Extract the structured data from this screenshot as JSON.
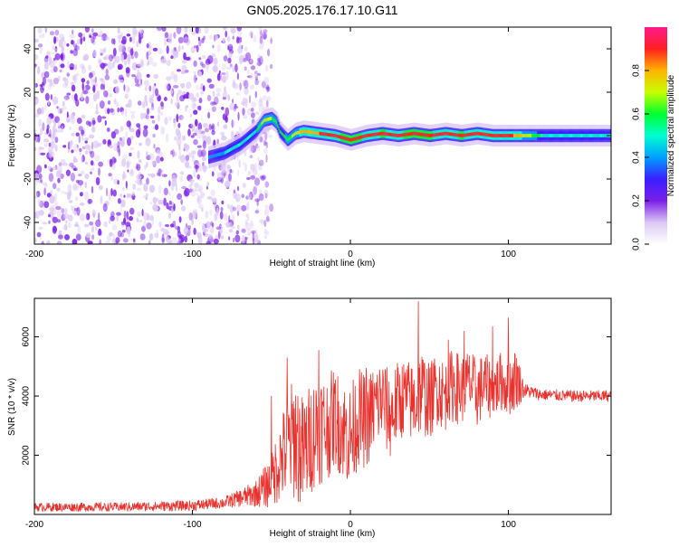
{
  "title": "GN05.2025.176.17.10.G11",
  "colors": {
    "snr_line": "#e8322d",
    "axis": "#000000",
    "background": "#ffffff"
  },
  "chart_data": [
    {
      "type": "heatmap",
      "name": "spectrogram",
      "xlabel": "Height of straight line (km)",
      "ylabel": "Frequency (Hz)",
      "xlim": [
        -200,
        165
      ],
      "ylim": [
        -50,
        50
      ],
      "xticks": [
        -200,
        -100,
        0,
        100
      ],
      "yticks": [
        -40,
        -20,
        0,
        20,
        40
      ],
      "colorbar": {
        "label": "Normalized spectral amplitude",
        "range": [
          0,
          1
        ],
        "ticks": [
          0.0,
          0.2,
          0.4,
          0.6,
          0.8
        ],
        "colormap": [
          "#ffffff",
          "#dcc8f5",
          "#7b1fe8",
          "#3a1fff",
          "#00a0ff",
          "#00ffd0",
          "#00ff30",
          "#c8ff00",
          "#ffb400",
          "#ff2020",
          "#ff1a8c"
        ]
      },
      "ridge": {
        "x": [
          -90,
          -80,
          -70,
          -60,
          -55,
          -50,
          -47,
          -45,
          -40,
          -35,
          -30,
          -20,
          -10,
          0,
          10,
          20,
          30,
          40,
          50,
          60,
          70,
          80,
          90,
          100,
          120,
          140,
          165
        ],
        "freq": [
          -10,
          -8,
          -4,
          2,
          7,
          8,
          6,
          2,
          -2,
          1,
          2,
          1,
          0,
          -2,
          0,
          1,
          0,
          1,
          0,
          1,
          0,
          1,
          0,
          0,
          0,
          0,
          0
        ],
        "amplitude": [
          0.4,
          0.45,
          0.5,
          0.55,
          0.7,
          0.65,
          0.6,
          0.55,
          0.6,
          0.7,
          0.8,
          0.85,
          0.9,
          0.95,
          0.9,
          0.92,
          0.9,
          0.95,
          0.92,
          0.9,
          0.92,
          0.9,
          0.9,
          0.9,
          0.55,
          0.5,
          0.5
        ]
      },
      "noise_region_x": [
        -200,
        -50
      ],
      "noise_level": 0.3
    },
    {
      "type": "line",
      "name": "snr",
      "xlabel": "Height of straight line (km)",
      "ylabel": "SNR (10 * v/v)",
      "xlim": [
        -200,
        165
      ],
      "ylim": [
        0,
        7300
      ],
      "xticks": [
        -200,
        -100,
        0,
        100
      ],
      "yticks": [
        2000,
        4000,
        6000
      ],
      "series": [
        {
          "x": [
            -200,
            -150,
            -100,
            -80,
            -70,
            -60,
            -50,
            -45,
            -40,
            -35,
            -30,
            -25,
            -20,
            -15,
            -10,
            -5,
            0,
            5,
            10,
            15,
            20,
            25,
            30,
            35,
            40,
            45,
            50,
            55,
            60,
            65,
            70,
            75,
            80,
            85,
            90,
            95,
            100,
            105,
            110,
            120,
            140,
            165
          ],
          "y": [
            250,
            250,
            300,
            400,
            550,
            700,
            1100,
            1800,
            2200,
            2700,
            2000,
            2600,
            3000,
            2900,
            3300,
            2900,
            2600,
            3300,
            3100,
            3600,
            3900,
            3300,
            3800,
            4000,
            3700,
            4200,
            3800,
            4300,
            4000,
            4400,
            4200,
            4500,
            4100,
            4400,
            4200,
            4500,
            4300,
            4600,
            4200,
            4050,
            4000,
            4000
          ],
          "spread": [
            150,
            150,
            180,
            200,
            300,
            450,
            900,
            1400,
            1800,
            2200,
            2000,
            1900,
            2000,
            1800,
            1700,
            1700,
            1800,
            1700,
            1600,
            1500,
            1500,
            1500,
            1400,
            1300,
            1400,
            1500,
            1300,
            1300,
            1200,
            1300,
            1200,
            1100,
            1200,
            1100,
            1000,
            1000,
            1000,
            1100,
            250,
            200,
            200,
            200
          ],
          "peaks": [
            [
              -50,
              4000
            ],
            [
              -40,
              5300
            ],
            [
              -20,
              5550
            ],
            [
              10,
              4950
            ],
            [
              43,
              7200
            ],
            [
              62,
              5900
            ],
            [
              72,
              6200
            ],
            [
              90,
              6350
            ],
            [
              100,
              6650
            ]
          ]
        }
      ]
    }
  ]
}
